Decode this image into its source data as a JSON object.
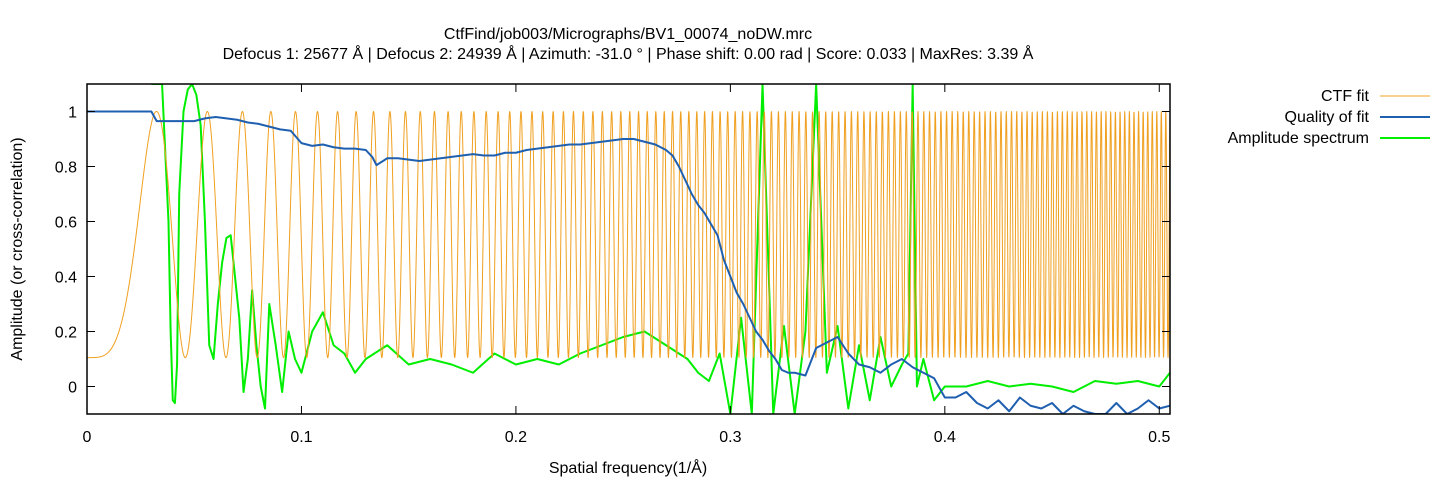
{
  "chart_data": {
    "type": "line",
    "title": "CtfFind/job003/Micrographs/BV1_00074_noDW.mrc",
    "subtitle": "Defocus 1: 25677 Å | Defocus 2: 24939 Å | Azimuth: -31.0 ° | Phase shift: 0.00 rad | Score: 0.033 | MaxRes: 3.39 Å",
    "xlabel": "Spatial frequency(1/Å)",
    "ylabel": "Amplitude (or cross-correlation)",
    "xlim": [
      0,
      0.505
    ],
    "ylim": [
      -0.1,
      1.1
    ],
    "x_ticks": [
      0,
      0.1,
      0.2,
      0.3,
      0.4,
      0.5
    ],
    "x_tick_labels": [
      "0",
      "0.1",
      "0.2",
      "0.3",
      "0.4",
      "0.5"
    ],
    "y_ticks": [
      0,
      0.2,
      0.4,
      0.6,
      0.8,
      1
    ],
    "y_tick_labels": [
      "0",
      "0.2",
      "0.4",
      "0.6",
      "0.8",
      "1"
    ],
    "grid": false,
    "legend_position": "right, outside plot",
    "series": [
      {
        "name": "CTF fit",
        "color": "#f0a020",
        "kind": "ctf",
        "model": {
          "y0": 0.105,
          "first_zero_sq": 0.00105,
          "ring_spacing_sq": 0.0021
        }
      },
      {
        "name": "Quality of fit",
        "color": "#1f5fb0",
        "x": [
          0,
          0.005,
          0.01,
          0.015,
          0.02,
          0.025,
          0.03,
          0.0325,
          0.035,
          0.04,
          0.045,
          0.05,
          0.055,
          0.06,
          0.065,
          0.07,
          0.075,
          0.08,
          0.085,
          0.09,
          0.095,
          0.1,
          0.105,
          0.11,
          0.115,
          0.12,
          0.125,
          0.13,
          0.133,
          0.135,
          0.14,
          0.145,
          0.15,
          0.155,
          0.16,
          0.165,
          0.17,
          0.175,
          0.18,
          0.185,
          0.19,
          0.195,
          0.2,
          0.205,
          0.21,
          0.215,
          0.22,
          0.225,
          0.23,
          0.235,
          0.24,
          0.245,
          0.25,
          0.255,
          0.26,
          0.265,
          0.27,
          0.273,
          0.276,
          0.279,
          0.282,
          0.285,
          0.288,
          0.291,
          0.294,
          0.297,
          0.3,
          0.303,
          0.306,
          0.309,
          0.312,
          0.315,
          0.318,
          0.321,
          0.324,
          0.327,
          0.33,
          0.335,
          0.34,
          0.345,
          0.35,
          0.355,
          0.36,
          0.365,
          0.37,
          0.375,
          0.38,
          0.385,
          0.39,
          0.395,
          0.4,
          0.405,
          0.41,
          0.415,
          0.42,
          0.425,
          0.43,
          0.435,
          0.44,
          0.445,
          0.45,
          0.455,
          0.46,
          0.465,
          0.47,
          0.475,
          0.48,
          0.485,
          0.49,
          0.495,
          0.5,
          0.505
        ],
        "y": [
          1,
          1,
          1,
          1,
          1,
          1,
          1,
          0.965,
          0.965,
          0.965,
          0.965,
          0.965,
          0.975,
          0.98,
          0.975,
          0.97,
          0.96,
          0.955,
          0.945,
          0.935,
          0.93,
          0.885,
          0.875,
          0.88,
          0.87,
          0.865,
          0.865,
          0.86,
          0.835,
          0.805,
          0.83,
          0.83,
          0.825,
          0.82,
          0.825,
          0.83,
          0.835,
          0.84,
          0.845,
          0.84,
          0.84,
          0.85,
          0.85,
          0.86,
          0.865,
          0.87,
          0.875,
          0.88,
          0.88,
          0.885,
          0.89,
          0.895,
          0.9,
          0.9,
          0.89,
          0.88,
          0.86,
          0.84,
          0.8,
          0.75,
          0.7,
          0.66,
          0.63,
          0.59,
          0.55,
          0.46,
          0.4,
          0.34,
          0.3,
          0.25,
          0.2,
          0.17,
          0.13,
          0.1,
          0.06,
          0.05,
          0.05,
          0.04,
          0.14,
          0.16,
          0.18,
          0.12,
          0.08,
          0.07,
          0.05,
          0.08,
          0.1,
          0.07,
          0.05,
          0.03,
          -0.04,
          -0.04,
          -0.02,
          -0.06,
          -0.08,
          -0.05,
          -0.09,
          -0.04,
          -0.07,
          -0.08,
          -0.06,
          -0.1,
          -0.07,
          -0.09,
          -0.1,
          -0.1,
          -0.06,
          -0.1,
          -0.08,
          -0.05,
          -0.08,
          -0.07
        ]
      },
      {
        "name": "Amplitude spectrum",
        "color": "#00ee00",
        "x": [
          0.03,
          0.035,
          0.038,
          0.039,
          0.04,
          0.041,
          0.042,
          0.043,
          0.045,
          0.047,
          0.049,
          0.051,
          0.053,
          0.055,
          0.057,
          0.059,
          0.061,
          0.063,
          0.065,
          0.067,
          0.069,
          0.071,
          0.073,
          0.075,
          0.077,
          0.079,
          0.081,
          0.083,
          0.085,
          0.088,
          0.091,
          0.094,
          0.097,
          0.1,
          0.105,
          0.11,
          0.115,
          0.12,
          0.125,
          0.13,
          0.14,
          0.15,
          0.16,
          0.17,
          0.18,
          0.19,
          0.2,
          0.21,
          0.22,
          0.23,
          0.24,
          0.25,
          0.26,
          0.27,
          0.28,
          0.285,
          0.29,
          0.295,
          0.3,
          0.305,
          0.31,
          0.315,
          0.32,
          0.325,
          0.33,
          0.335,
          0.34,
          0.345,
          0.35,
          0.355,
          0.36,
          0.365,
          0.37,
          0.375,
          0.38,
          0.383,
          0.385,
          0.387,
          0.39,
          0.395,
          0.4,
          0.41,
          0.42,
          0.43,
          0.44,
          0.45,
          0.46,
          0.47,
          0.48,
          0.49,
          0.5,
          0.505
        ],
        "y": [
          1.1,
          1.1,
          0.6,
          0.2,
          -0.05,
          -0.06,
          0.08,
          0.7,
          1.0,
          1.08,
          1.1,
          1.06,
          0.95,
          0.6,
          0.15,
          0.1,
          0.3,
          0.45,
          0.54,
          0.55,
          0.4,
          0.25,
          -0.02,
          0.1,
          0.35,
          0.15,
          0.0,
          -0.08,
          0.3,
          0.15,
          -0.02,
          0.2,
          0.1,
          0.05,
          0.2,
          0.27,
          0.15,
          0.12,
          0.05,
          0.1,
          0.15,
          0.08,
          0.1,
          0.08,
          0.05,
          0.12,
          0.08,
          0.1,
          0.08,
          0.12,
          0.15,
          0.18,
          0.2,
          0.15,
          0.1,
          0.05,
          0.02,
          0.12,
          -0.1,
          0.25,
          -0.1,
          1.1,
          -0.1,
          0.22,
          -0.1,
          0.2,
          1.1,
          0.05,
          0.22,
          -0.08,
          0.15,
          -0.05,
          0.18,
          0.0,
          0.08,
          0.12,
          1.1,
          0.0,
          0.1,
          -0.05,
          0.0,
          0.0,
          0.02,
          0.0,
          0.01,
          0.0,
          -0.02,
          0.02,
          0.01,
          0.02,
          0.0,
          0.05
        ]
      }
    ]
  }
}
